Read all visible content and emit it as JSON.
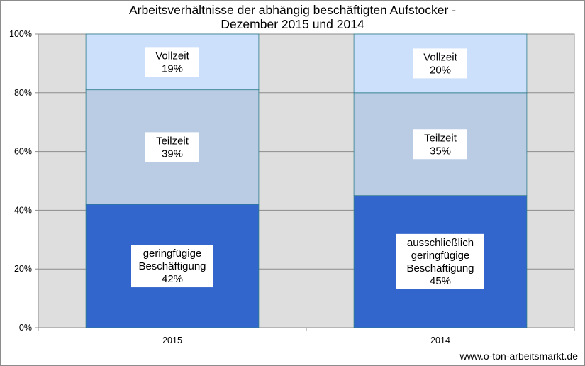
{
  "chart_data": {
    "type": "bar",
    "stacked": true,
    "title": [
      "Arbeitsverhältnisse der abhängig beschäftigten Aufstocker -",
      "Dezember 2015 und 2014"
    ],
    "categories": [
      "2015",
      "2014"
    ],
    "series": [
      {
        "labels": [
          [
            "geringfügige",
            "Beschäftigung"
          ],
          [
            "ausschließlich",
            "geringfügige",
            "Beschäftigung"
          ]
        ],
        "values": [
          42,
          45
        ],
        "value_labels": [
          "42%",
          "45%"
        ],
        "color": "#3366cc"
      },
      {
        "labels": [
          [
            "Teilzeit"
          ],
          [
            "Teilzeit"
          ]
        ],
        "values": [
          39,
          35
        ],
        "value_labels": [
          "39%",
          "35%"
        ],
        "color": "#b9cce4"
      },
      {
        "labels": [
          [
            "Vollzeit"
          ],
          [
            "Vollzeit"
          ]
        ],
        "values": [
          19,
          20
        ],
        "value_labels": [
          "19%",
          "20%"
        ],
        "color": "#cce0fb"
      }
    ],
    "yticks": [
      "0%",
      "20%",
      "40%",
      "60%",
      "80%",
      "100%"
    ],
    "ylim": [
      0,
      100
    ],
    "grid": true,
    "plot_background": "#dedede",
    "bar_edge": "#2e7d8c"
  },
  "source": "www.o-ton-arbeitsmarkt.de"
}
